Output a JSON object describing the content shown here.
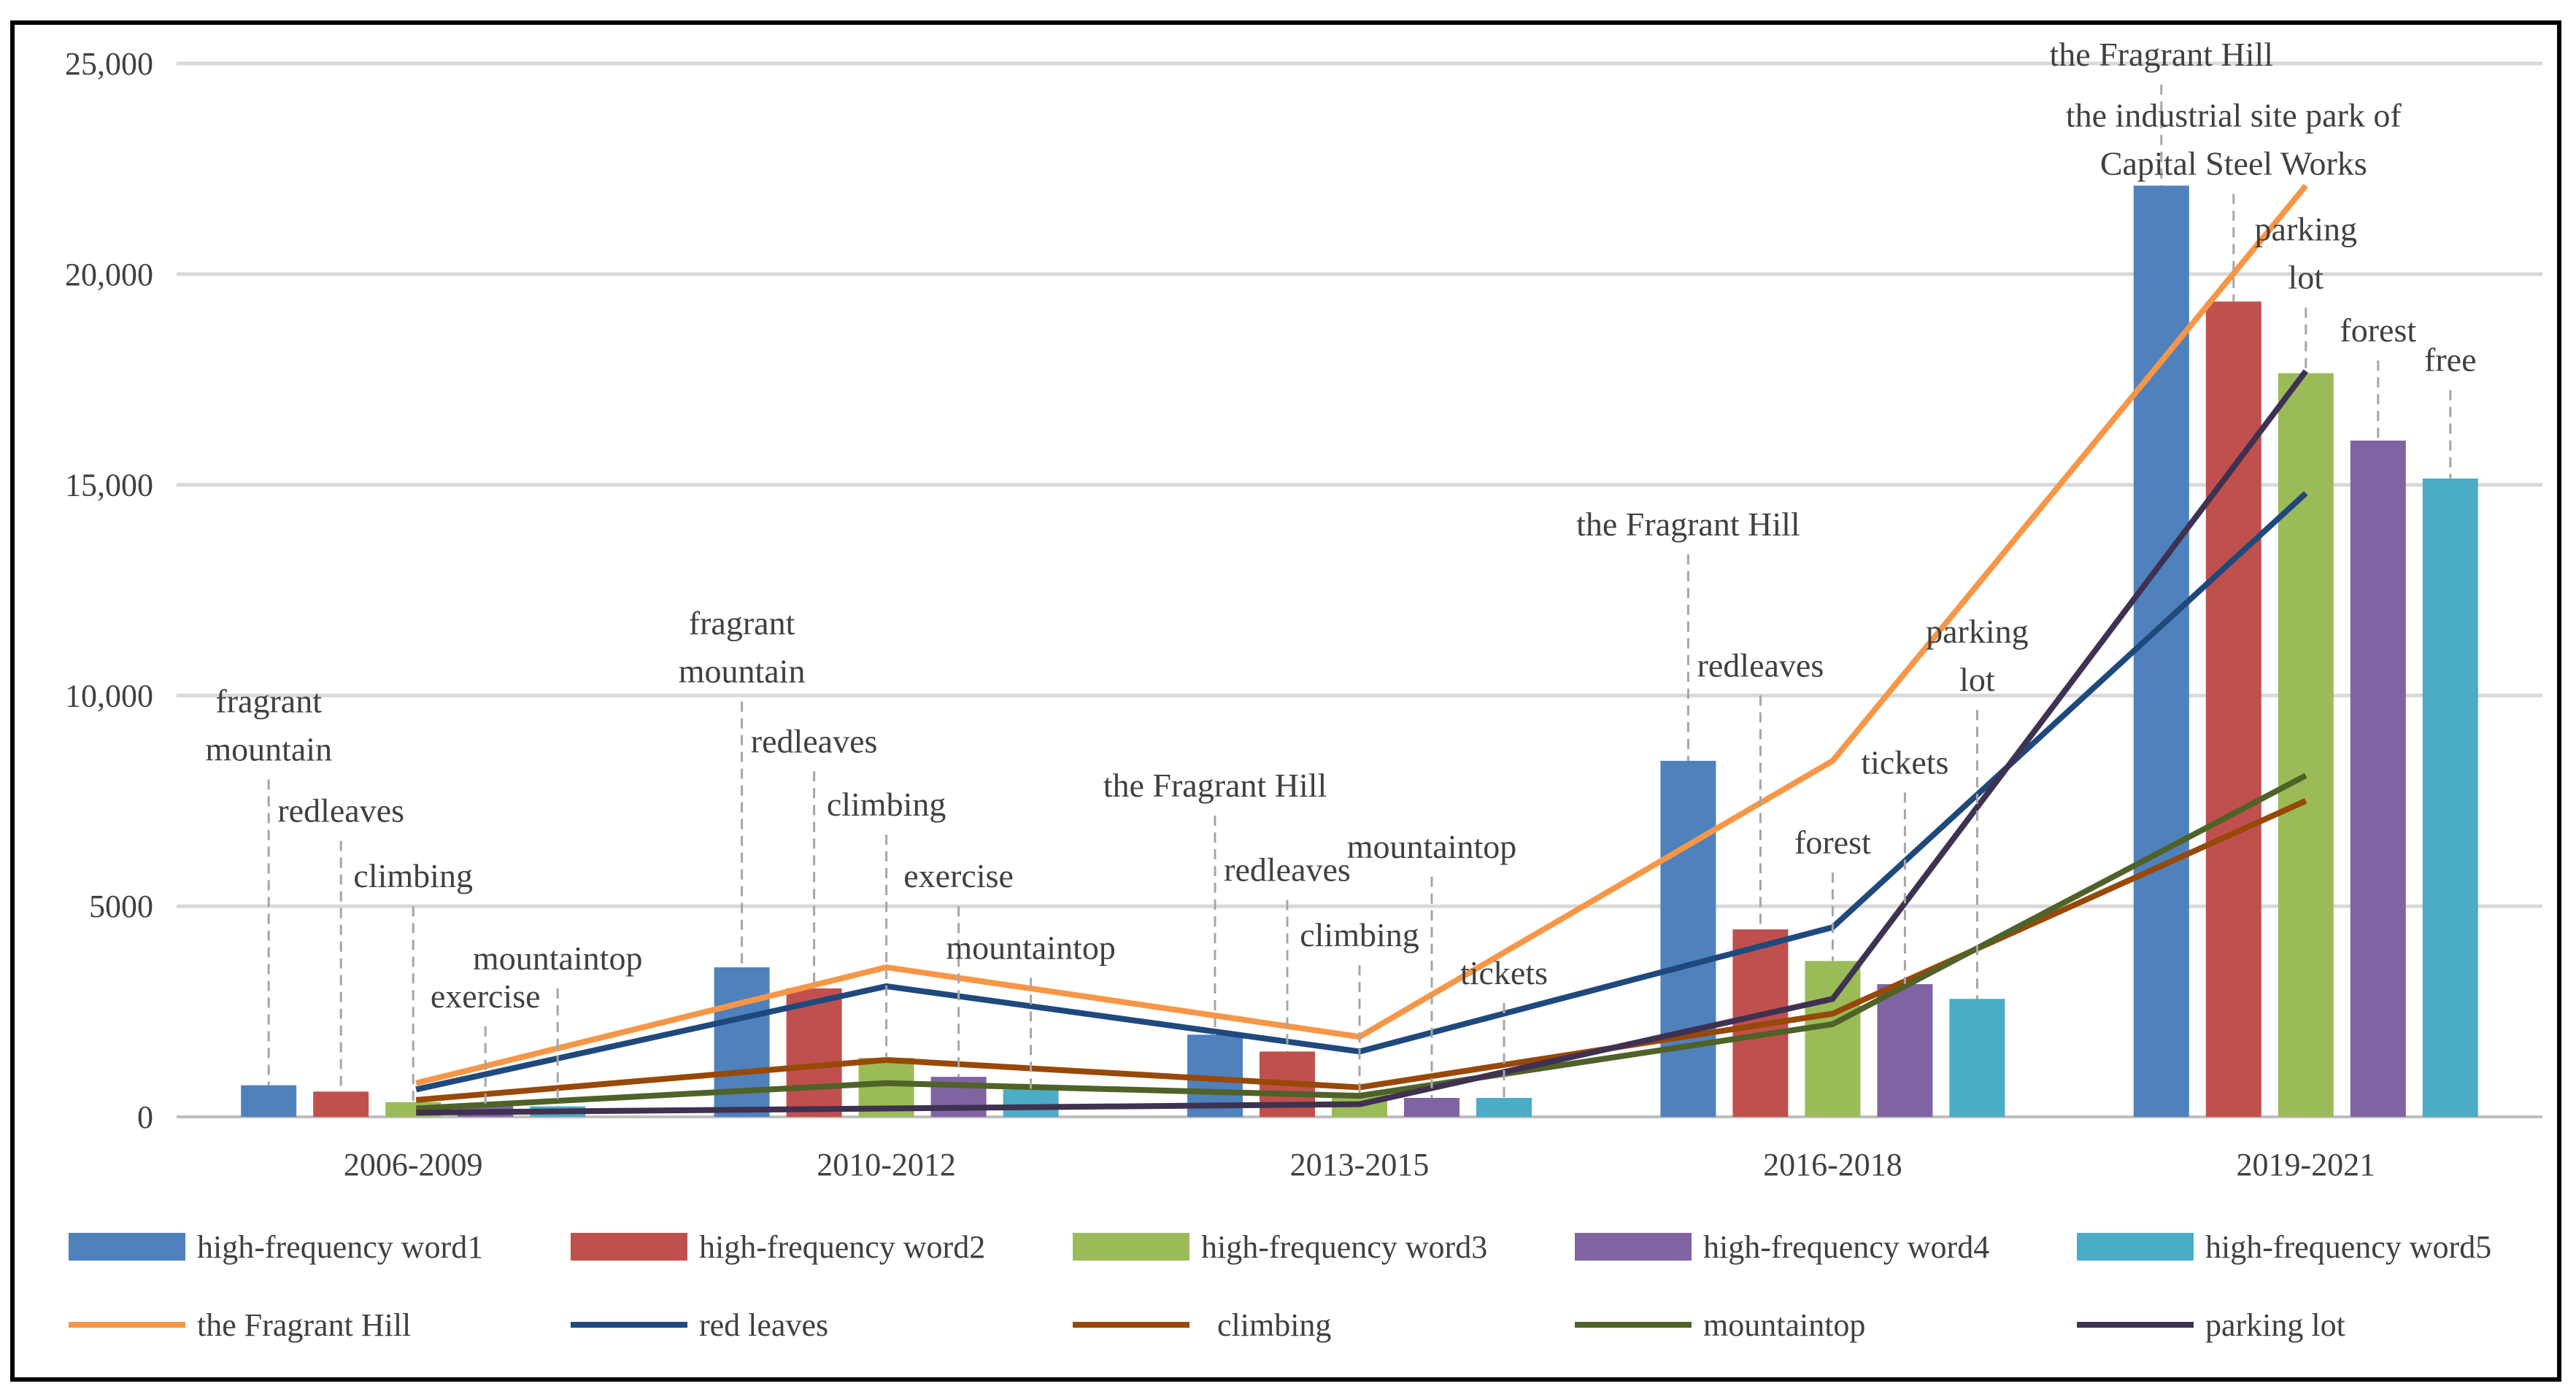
{
  "chart_data": {
    "type": "bar+line",
    "categories": [
      "2006-2009",
      "2010-2012",
      "2013-2015",
      "2016-2018",
      "2019-2021"
    ],
    "ylim": [
      0,
      25000
    ],
    "yticks": [
      0,
      5000,
      10000,
      15000,
      20000,
      25000
    ],
    "ytick_labels": [
      "0",
      "5000",
      "10,000",
      "15,000",
      "20,000",
      "25,000"
    ],
    "grid": true,
    "legend_placement": "bottom",
    "bar_series": [
      {
        "name": "high-frequency word1",
        "color": "#4F81BD",
        "values": [
          750,
          3550,
          1950,
          8450,
          22100
        ]
      },
      {
        "name": "high-frequency word2",
        "color": "#C0504D",
        "values": [
          600,
          3050,
          1550,
          4450,
          19350
        ]
      },
      {
        "name": "high-frequency word3",
        "color": "#9BBB59",
        "values": [
          350,
          1400,
          550,
          3700,
          17650
        ]
      },
      {
        "name": "high-frequency word4",
        "color": "#8064A2",
        "values": [
          300,
          950,
          450,
          3150,
          16050
        ]
      },
      {
        "name": "high-frequency word5",
        "color": "#4BACC6",
        "values": [
          250,
          650,
          450,
          2800,
          15150
        ]
      }
    ],
    "line_series": [
      {
        "name": "the Fragrant Hill",
        "color": "#F79646",
        "values": [
          800,
          3550,
          1900,
          8450,
          22100
        ]
      },
      {
        "name": "red leaves",
        "color": "#1F497D",
        "values": [
          650,
          3100,
          1550,
          4500,
          14800
        ]
      },
      {
        "name": "climbing",
        "color": "#984807",
        "values": [
          400,
          1350,
          700,
          2450,
          7500
        ]
      },
      {
        "name": "mountaintop",
        "color": "#4F6228",
        "values": [
          200,
          800,
          500,
          2200,
          8100
        ]
      },
      {
        "name": "parking lot",
        "color": "#3F3151",
        "values": [
          100,
          200,
          300,
          2800,
          17700
        ]
      }
    ],
    "annotations": [
      {
        "group": 0,
        "bar": 0,
        "label_lines": [
          "fragrant",
          "mountain"
        ],
        "label_y": 9600
      },
      {
        "group": 0,
        "bar": 1,
        "label_lines": [
          "redleaves"
        ],
        "label_y": 7000
      },
      {
        "group": 0,
        "bar": 2,
        "label_lines": [
          "climbing"
        ],
        "label_y": 5450
      },
      {
        "group": 0,
        "bar": 3,
        "label_lines": [
          "exercise"
        ],
        "label_y": 2600
      },
      {
        "group": 0,
        "bar": 4,
        "label_lines": [
          "mountaintop"
        ],
        "label_y": 3500
      },
      {
        "group": 1,
        "bar": 0,
        "label_lines": [
          "fragrant",
          "mountain"
        ],
        "label_y": 11450
      },
      {
        "group": 1,
        "bar": 1,
        "label_lines": [
          "redleaves"
        ],
        "label_y": 8650
      },
      {
        "group": 1,
        "bar": 2,
        "label_lines": [
          "climbing"
        ],
        "label_y": 7150
      },
      {
        "group": 1,
        "bar": 3,
        "label_lines": [
          "exercise"
        ],
        "label_y": 5450
      },
      {
        "group": 1,
        "bar": 4,
        "label_lines": [
          "mountaintop"
        ],
        "label_y": 3750
      },
      {
        "group": 2,
        "bar": 0,
        "label_lines": [
          "the Fragrant Hill"
        ],
        "label_y": 7600
      },
      {
        "group": 2,
        "bar": 1,
        "label_lines": [
          "redleaves"
        ],
        "label_y": 5600
      },
      {
        "group": 2,
        "bar": 2,
        "label_lines": [
          "climbing"
        ],
        "label_y": 4050
      },
      {
        "group": 2,
        "bar": 3,
        "label_lines": [
          "mountaintop"
        ],
        "label_y": 6150
      },
      {
        "group": 2,
        "bar": 4,
        "label_lines": [
          "tickets"
        ],
        "label_y": 3150
      },
      {
        "group": 3,
        "bar": 0,
        "label_lines": [
          "the Fragrant Hill"
        ],
        "label_y": 13800
      },
      {
        "group": 3,
        "bar": 1,
        "label_lines": [
          "redleaves"
        ],
        "label_y": 10450
      },
      {
        "group": 3,
        "bar": 2,
        "label_lines": [
          "forest"
        ],
        "label_y": 6250
      },
      {
        "group": 3,
        "bar": 3,
        "label_lines": [
          "tickets"
        ],
        "label_y": 8150
      },
      {
        "group": 3,
        "bar": 4,
        "label_lines": [
          "parking",
          "lot"
        ],
        "label_y": 11250
      },
      {
        "group": 4,
        "bar": 0,
        "label_lines": [
          "the Fragrant Hill"
        ],
        "label_y": 24950
      },
      {
        "group": 4,
        "bar": 1,
        "label_lines": [
          "the industrial site park of",
          "Capital Steel Works"
        ],
        "label_y": 23500
      },
      {
        "group": 4,
        "bar": 2,
        "label_lines": [
          "parking",
          "lot"
        ],
        "label_y": 20800
      },
      {
        "group": 4,
        "bar": 3,
        "label_lines": [
          "forest"
        ],
        "label_y": 18400
      },
      {
        "group": 4,
        "bar": 4,
        "label_lines": [
          "free"
        ],
        "label_y": 17700
      }
    ]
  }
}
